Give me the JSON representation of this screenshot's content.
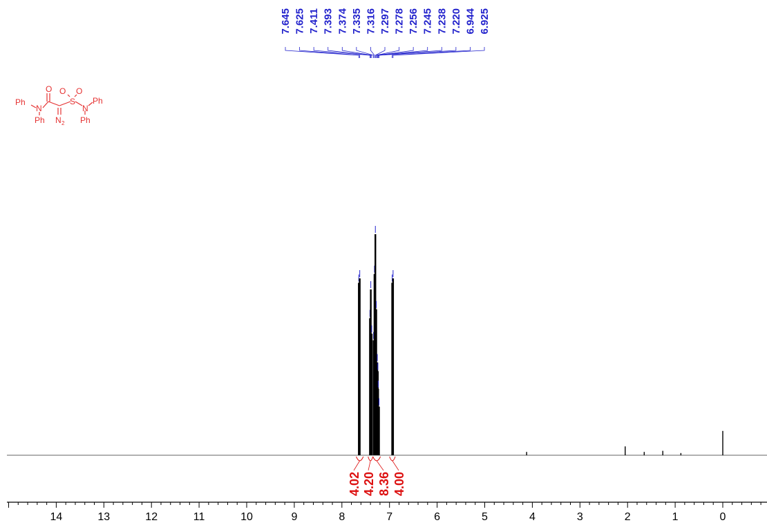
{
  "colors": {
    "peak_labels": "#2222cc",
    "integrals": "#dd1111",
    "structure": "#e53030",
    "spectrum": "#000000",
    "baseline": "#808080",
    "axis": "#000000"
  },
  "structure": {
    "left_top": "Ph",
    "left_n": "N",
    "left_bottom": "Ph",
    "carbonyl_o": "O",
    "diazo": "N",
    "diazo_sub": "2",
    "sulfur": "S",
    "sulfonyl_o1": "O",
    "sulfonyl_o2": "O",
    "right_n": "N",
    "right_top": "Ph",
    "right_bottom": "Ph"
  },
  "chart_data": {
    "type": "line",
    "xlabel": "",
    "ylabel": "",
    "xlim": [
      15.0,
      -0.9
    ],
    "x_reversed": true,
    "ticks": [
      14,
      13,
      12,
      11,
      10,
      9,
      8,
      7,
      6,
      5,
      4,
      3,
      2,
      1,
      0
    ],
    "peak_labels": [
      "7.645",
      "7.625",
      "7.411",
      "7.393",
      "7.374",
      "7.335",
      "7.316",
      "7.297",
      "7.278",
      "7.256",
      "7.245",
      "7.238",
      "7.220",
      "6.944",
      "6.925"
    ],
    "peaks": [
      {
        "ppm": 7.645,
        "intensity": 0.78
      },
      {
        "ppm": 7.625,
        "intensity": 0.8
      },
      {
        "ppm": 7.411,
        "intensity": 0.62
      },
      {
        "ppm": 7.393,
        "intensity": 0.75
      },
      {
        "ppm": 7.374,
        "intensity": 0.55
      },
      {
        "ppm": 7.335,
        "intensity": 0.52
      },
      {
        "ppm": 7.316,
        "intensity": 0.82
      },
      {
        "ppm": 7.297,
        "intensity": 1.0
      },
      {
        "ppm": 7.278,
        "intensity": 0.66
      },
      {
        "ppm": 7.256,
        "intensity": 0.42
      },
      {
        "ppm": 7.245,
        "intensity": 0.38
      },
      {
        "ppm": 7.238,
        "intensity": 0.3
      },
      {
        "ppm": 7.22,
        "intensity": 0.22
      },
      {
        "ppm": 6.944,
        "intensity": 0.78
      },
      {
        "ppm": 6.925,
        "intensity": 0.8
      },
      {
        "ppm": 4.12,
        "intensity": 0.015
      },
      {
        "ppm": 2.05,
        "intensity": 0.04
      },
      {
        "ppm": 1.65,
        "intensity": 0.015
      },
      {
        "ppm": 1.26,
        "intensity": 0.02
      },
      {
        "ppm": 0.88,
        "intensity": 0.01
      },
      {
        "ppm": 0.0,
        "intensity": 0.11
      }
    ],
    "integrals": [
      {
        "from": 7.7,
        "to": 7.55,
        "value": "4.02"
      },
      {
        "from": 7.45,
        "to": 7.35,
        "value": "4.20"
      },
      {
        "from": 7.35,
        "to": 7.19,
        "value": "8.36"
      },
      {
        "from": 7.0,
        "to": 6.88,
        "value": "4.00"
      }
    ]
  }
}
